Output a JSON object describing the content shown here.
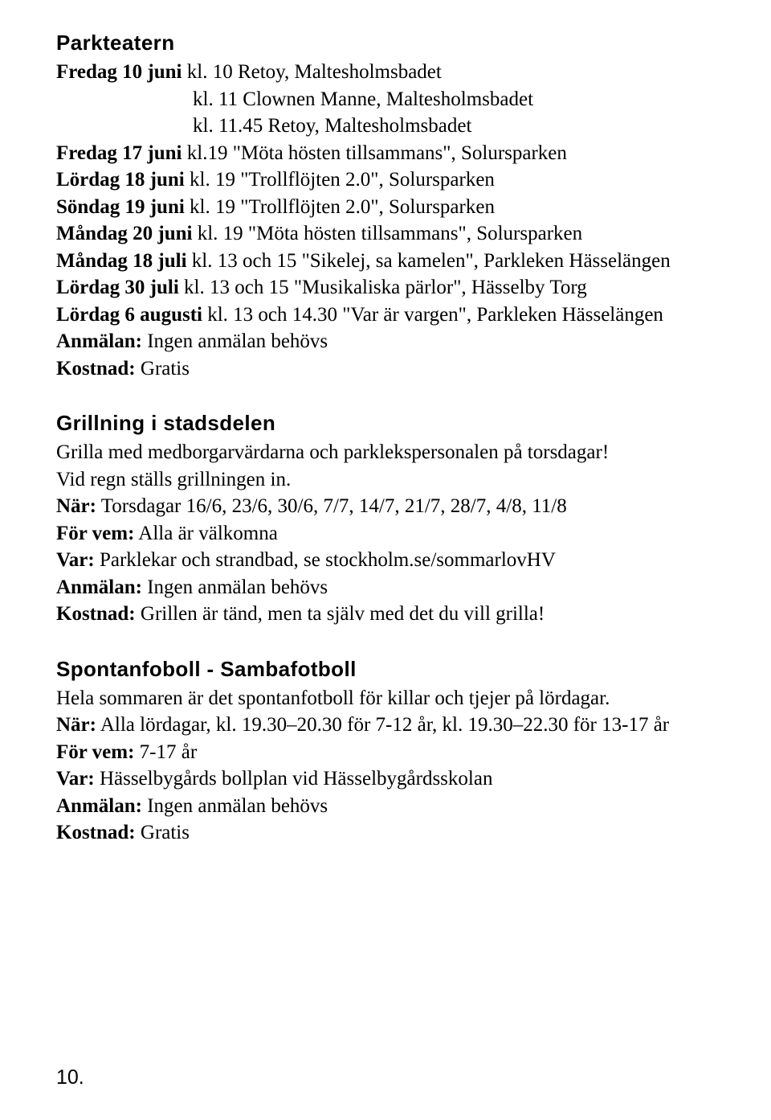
{
  "parkteatern": {
    "heading": "Parkteatern",
    "e1": {
      "date": "Fredag 10 juni",
      "text": " kl. 10 Retoy, Maltesholmsbadet"
    },
    "e2": "kl. 11 Clownen Manne, Maltesholmsbadet",
    "e3": "kl. 11.45 Retoy, Maltesholmsbadet",
    "e4": {
      "date": "Fredag 17 juni",
      "text": " kl.19 \"Möta hösten tillsammans\", Solursparken"
    },
    "e5": {
      "date": "Lördag 18 juni",
      "text": " kl. 19 \"Trollflöjten 2.0\", Solursparken"
    },
    "e6": {
      "date": "Söndag 19 juni",
      "text": " kl. 19 \"Trollflöjten 2.0\", Solursparken"
    },
    "e7": {
      "date": "Måndag 20 juni",
      "text": " kl. 19 \"Möta hösten tillsammans\", Solursparken"
    },
    "e8": {
      "date": "Måndag 18 juli",
      "text": " kl. 13 och 15 \"Sikelej, sa kamelen\", Parkleken Hässelängen"
    },
    "e9": {
      "date": "Lördag 30 juli",
      "text": " kl. 13 och 15 \"Musikaliska pärlor\", Hässelby Torg"
    },
    "e10": {
      "date": "Lördag 6 augusti",
      "text": " kl. 13 och 14.30 \"Var är vargen\", Parkleken Hässelängen"
    },
    "anmalan": {
      "label": "Anmälan:",
      "text": " Ingen anmälan behövs"
    },
    "kostnad": {
      "label": "Kostnad:",
      "text": " Gratis"
    }
  },
  "grillning": {
    "heading": "Grillning i stadsdelen",
    "intro1": "Grilla med medborgarvärdarna och parklekspersonalen på torsdagar!",
    "intro2": "Vid regn ställs grillningen in.",
    "nar": {
      "label": "När:",
      "text": " Torsdagar 16/6, 23/6, 30/6, 7/7, 14/7, 21/7, 28/7, 4/8, 11/8"
    },
    "forvem": {
      "label": "För vem:",
      "text": " Alla är välkomna"
    },
    "var": {
      "label": "Var:",
      "text": " Parklekar och strandbad, se stockholm.se/sommarlovHV"
    },
    "anmalan": {
      "label": "Anmälan:",
      "text": " Ingen anmälan behövs"
    },
    "kostnad": {
      "label": "Kostnad:",
      "text": " Grillen är tänd, men ta själv med det du vill grilla!"
    }
  },
  "spontan": {
    "heading": "Spontanfoboll - Sambafotboll",
    "intro": "Hela sommaren är det spontanfotboll för killar och tjejer på lördagar.",
    "nar": {
      "label": "När:",
      "text": " Alla lördagar, kl. 19.30–20.30 för 7-12 år, kl. 19.30–22.30 för 13-17 år"
    },
    "forvem": {
      "label": "För vem:",
      "text": " 7-17 år"
    },
    "var": {
      "label": "Var:",
      "text": " Hässelbygårds bollplan vid Hässelbygårdsskolan"
    },
    "anmalan": {
      "label": "Anmälan:",
      "text": " Ingen anmälan behövs"
    },
    "kostnad": {
      "label": "Kostnad:",
      "text": " Gratis"
    }
  },
  "pageNumber": "10."
}
